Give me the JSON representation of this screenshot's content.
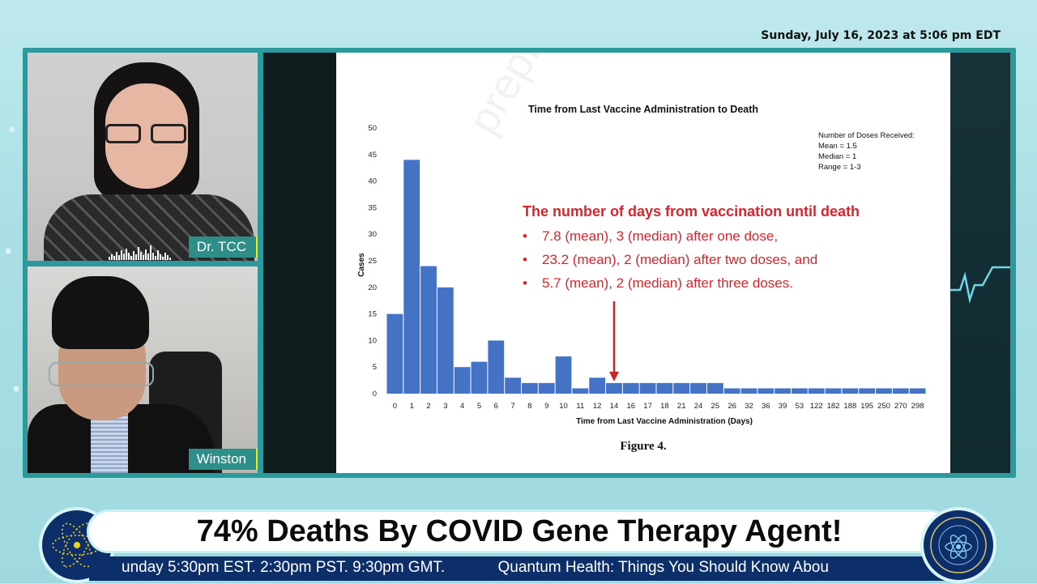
{
  "header": {
    "datetime": "Sunday, July 16, 2023 at 5:06 pm EDT"
  },
  "participants": [
    {
      "name": "Dr. TCC"
    },
    {
      "name": "Winston"
    }
  ],
  "slide": {
    "doses_note": [
      "Number of Doses Received:",
      "Mean = 1.5",
      "Median = 1",
      "Range = 1-3"
    ],
    "annotation": {
      "heading": "The number of days from vaccination until death",
      "bullets": [
        "7.8 (mean), 3 (median) after one dose,",
        "23.2 (mean), 2 (median) after two doses, and",
        "5.7 (mean), 2 (median) after three doses."
      ]
    },
    "figure_caption": "Figure 4.",
    "watermark": "preprint not peer reviewed"
  },
  "chart_data": {
    "type": "bar",
    "title": "Time from Last Vaccine Administration to Death",
    "xlabel": "Time from Last Vaccine Administration (Days)",
    "ylabel": "Cases",
    "ylim": [
      0,
      50
    ],
    "yticks": [
      0,
      5,
      10,
      15,
      20,
      25,
      30,
      35,
      40,
      45,
      50
    ],
    "categories": [
      "0",
      "1",
      "2",
      "3",
      "4",
      "5",
      "6",
      "7",
      "8",
      "9",
      "10",
      "11",
      "12",
      "14",
      "16",
      "17",
      "18",
      "21",
      "24",
      "25",
      "26",
      "32",
      "36",
      "39",
      "53",
      "122",
      "182",
      "188",
      "195",
      "250",
      "270",
      "298"
    ],
    "values": [
      15,
      44,
      24,
      20,
      5,
      6,
      10,
      3,
      2,
      2,
      7,
      1,
      3,
      2,
      2,
      2,
      2,
      2,
      2,
      2,
      1,
      1,
      1,
      1,
      1,
      1,
      1,
      1,
      1,
      1,
      1,
      1
    ],
    "bar_color": "#4472c4",
    "marker": {
      "category": "14",
      "color": "#c8242b"
    },
    "grid": false
  },
  "lower_third": {
    "title": "74% Deaths By COVID Gene Therapy Agent!",
    "ticker": [
      "unday 5:30pm EST. 2:30pm PST. 9:30pm GMT.",
      "Quantum Health: Things You Should Know Abou"
    ]
  },
  "colors": {
    "frame": "#2c9a9d",
    "ticker_bg": "#0c2f69",
    "name_tag": "#2e8f88",
    "annotation": "#d9242b"
  }
}
